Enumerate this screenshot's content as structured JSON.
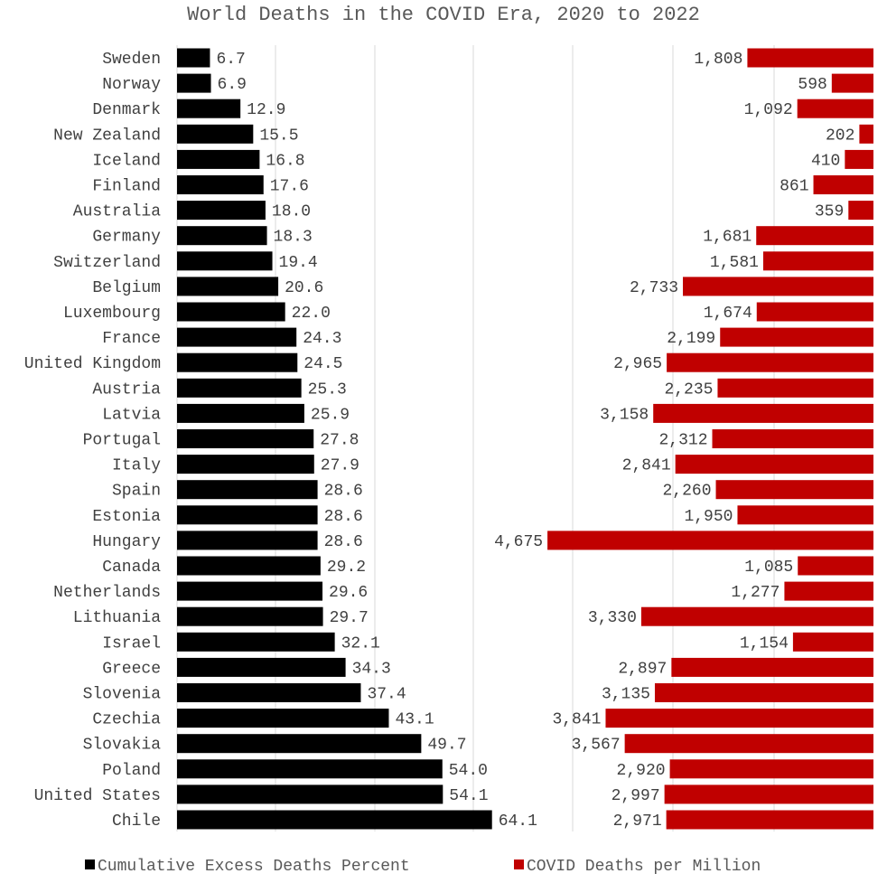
{
  "chart_data": {
    "type": "bar",
    "orientation": "horizontal",
    "title": "World Deaths in the COVID Era, 2020 to 2022",
    "categories": [
      "Sweden",
      "Norway",
      "Denmark",
      "New Zealand",
      "Iceland",
      "Finland",
      "Australia",
      "Germany",
      "Switzerland",
      "Belgium",
      "Luxembourg",
      "France",
      "United Kingdom",
      "Austria",
      "Latvia",
      "Portugal",
      "Italy",
      "Spain",
      "Estonia",
      "Hungary",
      "Canada",
      "Netherlands",
      "Lithuania",
      "Israel",
      "Greece",
      "Slovenia",
      "Czechia",
      "Slovakia",
      "Poland",
      "United States",
      "Chile"
    ],
    "series": [
      {
        "name": "Cumulative Excess Deaths Percent",
        "color": "#000000",
        "values": [
          6.7,
          6.9,
          12.9,
          15.5,
          16.8,
          17.6,
          18.0,
          18.3,
          19.4,
          20.6,
          22.0,
          24.3,
          24.5,
          25.3,
          25.9,
          27.8,
          27.9,
          28.6,
          28.6,
          28.6,
          29.2,
          29.6,
          29.7,
          32.1,
          34.3,
          37.4,
          43.1,
          49.7,
          54.0,
          54.1,
          64.1
        ],
        "labels": [
          "6.7",
          "6.9",
          "12.9",
          "15.5",
          "16.8",
          "17.6",
          "18.0",
          "18.3",
          "19.4",
          "20.6",
          "22.0",
          "24.3",
          "24.5",
          "25.3",
          "25.9",
          "27.8",
          "27.9",
          "28.6",
          "28.6",
          "28.6",
          "29.2",
          "29.6",
          "29.7",
          "32.1",
          "34.3",
          "37.4",
          "43.1",
          "49.7",
          "54.0",
          "54.1",
          "64.1"
        ],
        "xlim": [
          0,
          80
        ]
      },
      {
        "name": "COVID Deaths per Million",
        "color": "#c00000",
        "values": [
          1808,
          598,
          1092,
          202,
          410,
          861,
          359,
          1681,
          1581,
          2733,
          1674,
          2199,
          2965,
          2235,
          3158,
          2312,
          2841,
          2260,
          1950,
          4675,
          1085,
          1277,
          3330,
          1154,
          2897,
          3135,
          3841,
          3567,
          2920,
          2997,
          2971
        ],
        "labels": [
          "1,808",
          "598",
          "1,092",
          "202",
          "410",
          "861",
          "359",
          "1,681",
          "1,581",
          "2,733",
          "1,674",
          "2,199",
          "2,965",
          "2,235",
          "3,158",
          "2,312",
          "2,841",
          "2,260",
          "1,950",
          "4,675",
          "1,085",
          "1,277",
          "3,330",
          "1,154",
          "2,897",
          "3,135",
          "3,841",
          "3,567",
          "2,920",
          "2,997",
          "2,971"
        ],
        "xlim": [
          0,
          4675
        ],
        "direction": "right-to-left"
      }
    ],
    "legend": {
      "position": "bottom",
      "items": [
        "Cumulative Excess Deaths Percent",
        "COVID Deaths per Million"
      ]
    },
    "grid": true
  }
}
